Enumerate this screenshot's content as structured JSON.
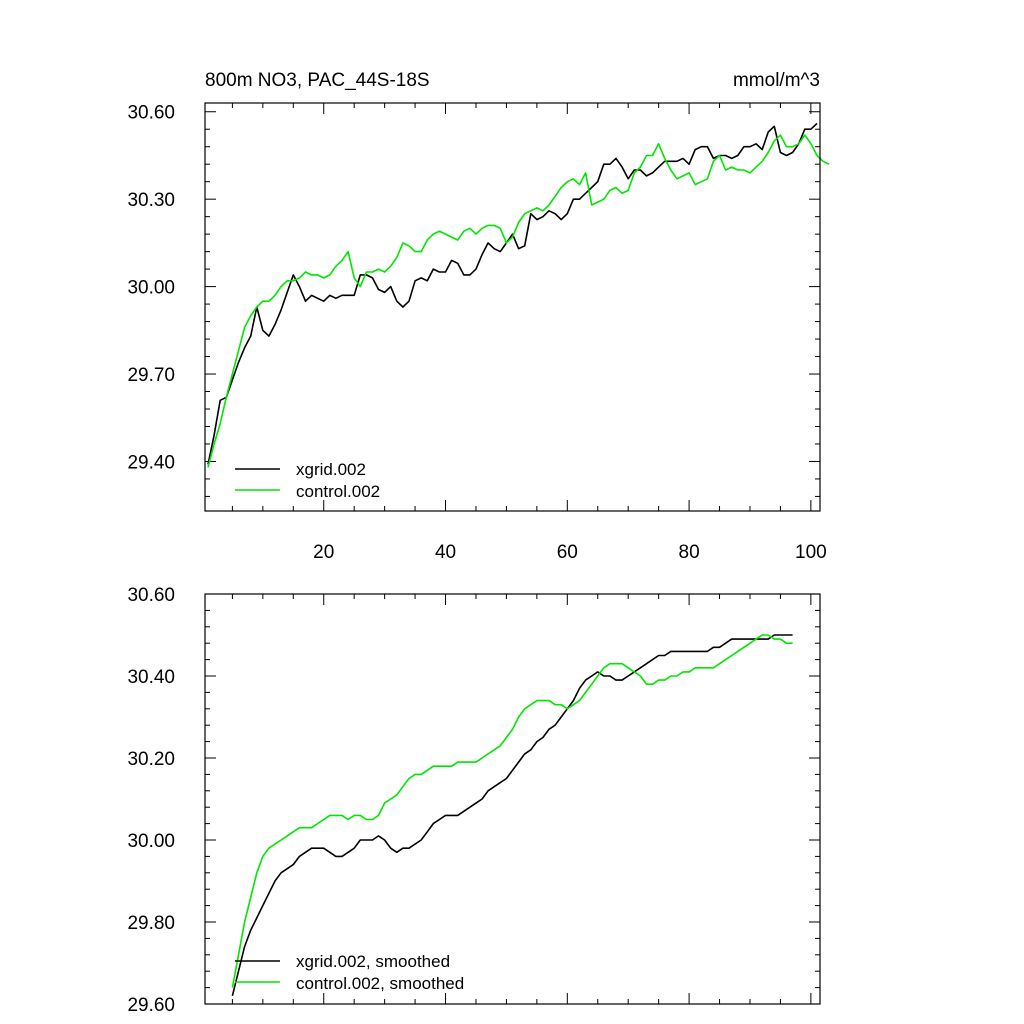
{
  "chart_data": [
    {
      "type": "line",
      "title": "800m NO3, PAC_44S-18S",
      "units_label": "mmol/m^3",
      "ylim": [
        29.23,
        30.63
      ],
      "xlim": [
        0.5,
        101.5
      ],
      "yticks": [
        "30.60",
        "30.30",
        "30.00",
        "29.70",
        "29.40"
      ],
      "xticks": [
        "20",
        "40",
        "60",
        "80",
        "100"
      ],
      "series": [
        {
          "name": "xgrid.002",
          "color": "#000000",
          "x_start": 1,
          "values": [
            29.39,
            29.49,
            29.61,
            29.62,
            29.68,
            29.74,
            29.79,
            29.83,
            29.93,
            29.85,
            29.83,
            29.87,
            29.92,
            29.98,
            30.04,
            30.0,
            29.95,
            29.97,
            29.96,
            29.95,
            29.97,
            29.96,
            29.97,
            29.97,
            29.97,
            30.04,
            30.04,
            30.03,
            29.99,
            29.98,
            30.0,
            29.95,
            29.93,
            29.95,
            30.02,
            30.03,
            30.02,
            30.06,
            30.05,
            30.05,
            30.09,
            30.08,
            30.04,
            30.04,
            30.06,
            30.11,
            30.15,
            30.13,
            30.12,
            30.15,
            30.18,
            30.13,
            30.14,
            30.25,
            30.23,
            30.24,
            30.26,
            30.25,
            30.23,
            30.25,
            30.3,
            30.3,
            30.32,
            30.34,
            30.36,
            30.42,
            30.42,
            30.44,
            30.41,
            30.37,
            30.4,
            30.4,
            30.38,
            30.39,
            30.41,
            30.43,
            30.43,
            30.43,
            30.44,
            30.42,
            30.47,
            30.48,
            30.48,
            30.44,
            30.45,
            30.45,
            30.44,
            30.45,
            30.48,
            30.48,
            30.49,
            30.47,
            30.53,
            30.55,
            30.46,
            30.45,
            30.46,
            30.49,
            30.54,
            30.54,
            30.56
          ]
        },
        {
          "name": "control.002",
          "color": "#00e600",
          "x_start": 1,
          "values": [
            29.38,
            29.46,
            29.53,
            29.62,
            29.7,
            29.78,
            29.86,
            29.9,
            29.93,
            29.95,
            29.95,
            29.97,
            30.0,
            30.02,
            30.02,
            30.03,
            30.05,
            30.04,
            30.04,
            30.03,
            30.04,
            30.07,
            30.09,
            30.12,
            30.03,
            30.0,
            30.05,
            30.05,
            30.06,
            30.05,
            30.07,
            30.1,
            30.15,
            30.14,
            30.12,
            30.12,
            30.16,
            30.18,
            30.19,
            30.18,
            30.17,
            30.16,
            30.19,
            30.2,
            30.18,
            30.2,
            30.21,
            30.21,
            30.2,
            30.15,
            30.17,
            30.22,
            30.25,
            30.26,
            30.27,
            30.26,
            30.28,
            30.31,
            30.34,
            30.36,
            30.37,
            30.35,
            30.39,
            30.28,
            30.29,
            30.3,
            30.33,
            30.34,
            30.32,
            30.33,
            30.39,
            30.41,
            30.45,
            30.45,
            30.49,
            30.44,
            30.4,
            30.37,
            30.38,
            30.39,
            30.35,
            30.36,
            30.37,
            30.43,
            30.45,
            30.4,
            30.41,
            30.4,
            30.4,
            30.39,
            30.41,
            30.43,
            30.46,
            30.5,
            30.52,
            30.48,
            30.48,
            30.49,
            30.52,
            30.49,
            30.45,
            30.43,
            30.42
          ]
        }
      ]
    },
    {
      "type": "line",
      "title": "",
      "ylim": [
        29.6,
        30.6
      ],
      "xlim": [
        0.5,
        101.5
      ],
      "yticks": [
        "30.60",
        "30.40",
        "30.20",
        "30.00",
        "29.80",
        "29.60"
      ],
      "series": [
        {
          "name": "xgrid.002, smoothed",
          "color": "#000000",
          "x_start": 5,
          "values": [
            29.62,
            29.68,
            29.74,
            29.78,
            29.81,
            29.84,
            29.87,
            29.9,
            29.92,
            29.93,
            29.94,
            29.96,
            29.97,
            29.98,
            29.98,
            29.98,
            29.97,
            29.96,
            29.96,
            29.97,
            29.98,
            30.0,
            30.0,
            30.0,
            30.01,
            30.0,
            29.98,
            29.97,
            29.98,
            29.98,
            29.99,
            30.0,
            30.02,
            30.04,
            30.05,
            30.06,
            30.06,
            30.06,
            30.07,
            30.08,
            30.09,
            30.1,
            30.12,
            30.13,
            30.14,
            30.15,
            30.17,
            30.19,
            30.21,
            30.22,
            30.24,
            30.25,
            30.27,
            30.28,
            30.3,
            30.32,
            30.34,
            30.37,
            30.39,
            30.4,
            30.41,
            30.4,
            30.4,
            30.39,
            30.39,
            30.4,
            30.41,
            30.42,
            30.43,
            30.44,
            30.45,
            30.45,
            30.46,
            30.46,
            30.46,
            30.46,
            30.46,
            30.46,
            30.46,
            30.47,
            30.47,
            30.48,
            30.49,
            30.49,
            30.49,
            30.49,
            30.49,
            30.49,
            30.49,
            30.5,
            30.5,
            30.5,
            30.5
          ]
        },
        {
          "name": "control.002, smoothed",
          "color": "#00e600",
          "x_start": 5,
          "values": [
            29.64,
            29.72,
            29.8,
            29.86,
            29.92,
            29.96,
            29.98,
            29.99,
            30.0,
            30.01,
            30.02,
            30.03,
            30.03,
            30.03,
            30.04,
            30.05,
            30.06,
            30.06,
            30.06,
            30.05,
            30.06,
            30.06,
            30.05,
            30.05,
            30.06,
            30.09,
            30.1,
            30.11,
            30.13,
            30.15,
            30.16,
            30.16,
            30.17,
            30.18,
            30.18,
            30.18,
            30.18,
            30.19,
            30.19,
            30.19,
            30.19,
            30.2,
            30.21,
            30.22,
            30.23,
            30.25,
            30.27,
            30.3,
            30.32,
            30.33,
            30.34,
            30.34,
            30.34,
            30.33,
            30.33,
            30.32,
            30.33,
            30.34,
            30.36,
            30.38,
            30.4,
            30.42,
            30.43,
            30.43,
            30.43,
            30.42,
            30.41,
            30.4,
            30.38,
            30.38,
            30.39,
            30.39,
            30.4,
            30.4,
            30.41,
            30.41,
            30.42,
            30.42,
            30.42,
            30.42,
            30.43,
            30.44,
            30.45,
            30.46,
            30.47,
            30.48,
            30.49,
            30.5,
            30.5,
            30.49,
            30.49,
            30.48,
            30.48
          ]
        }
      ]
    }
  ]
}
